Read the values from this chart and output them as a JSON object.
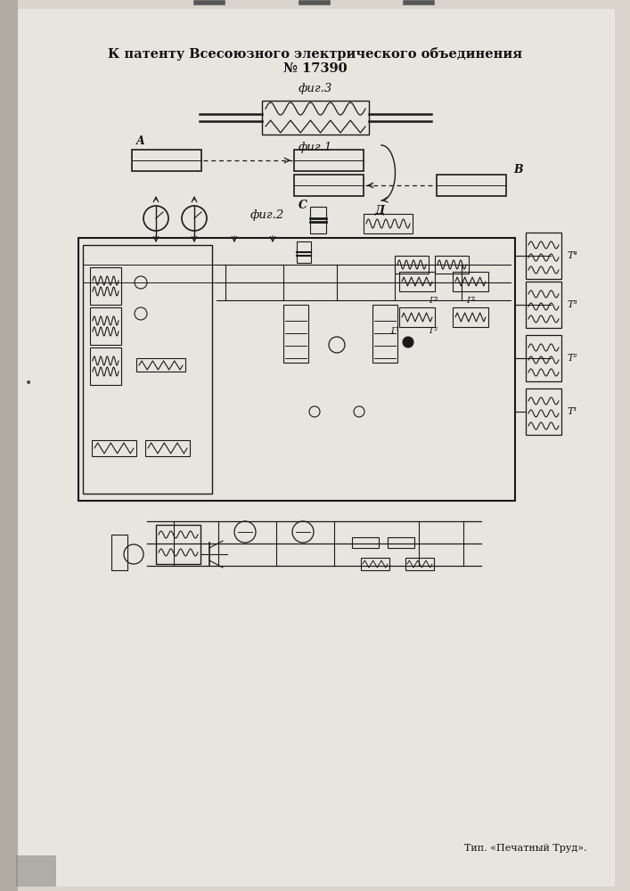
{
  "title_line1": "К патенту Всесоюзного электрического объединения",
  "title_line2": "№ 17390",
  "fig3_label": "фиг.3",
  "fig1_label": "фиг.1",
  "fig2_label": "фиг.2",
  "footer": "Тип. «Печатный Труд».",
  "bg_color": "#d8d4cc",
  "paper_color": "#e8e5df",
  "line_color": "#1a1a1a",
  "text_color": "#111111",
  "label_A": "A",
  "label_B": "B",
  "label_C": "C",
  "label_D": "Д",
  "page_width": 7.07,
  "page_height": 10.0
}
